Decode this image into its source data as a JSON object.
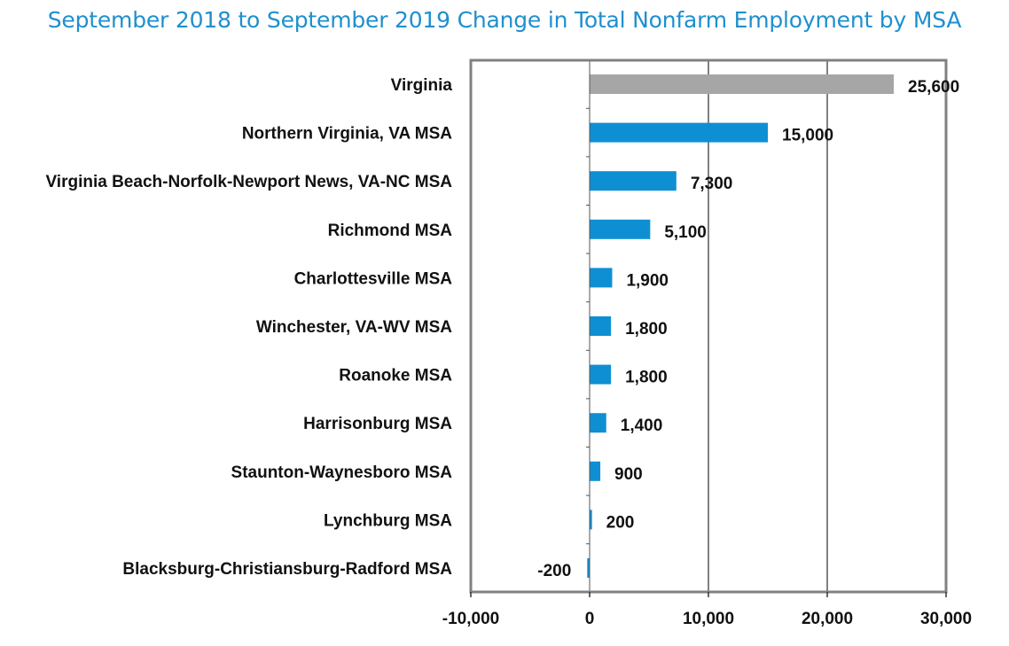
{
  "chart_data": {
    "type": "bar",
    "orientation": "horizontal",
    "title": "September 2018 to September 2019 Change in Total Nonfarm Employment by MSA",
    "xlabel": "",
    "ylabel": "",
    "categories": [
      "Virginia",
      "Northern Virginia, VA MSA",
      "Virginia Beach-Norfolk-Newport News, VA-NC MSA",
      "Richmond MSA",
      "Charlottesville MSA",
      "Winchester, VA-WV MSA",
      "Roanoke MSA",
      "Harrisonburg MSA",
      "Staunton-Waynesboro MSA",
      "Lynchburg MSA",
      "Blacksburg-Christiansburg-Radford MSA"
    ],
    "values": [
      25600,
      15000,
      7300,
      5100,
      1900,
      1800,
      1800,
      1400,
      900,
      200,
      -200
    ],
    "value_labels": [
      "25,600",
      "15,000",
      "7,300",
      "5,100",
      "1,900",
      "1,800",
      "1,800",
      "1,400",
      "900",
      "200",
      "-200"
    ],
    "xlim": [
      -10000,
      30000
    ],
    "xticks": [
      -10000,
      0,
      10000,
      20000,
      30000
    ],
    "xtick_labels": [
      "-10,000",
      "0",
      "10,000",
      "20,000",
      "30,000"
    ],
    "grid": "vertical",
    "legend": "none",
    "colors": {
      "highlight": "#a6a6a6",
      "bar": "#0f8fd3",
      "title": "#1f8fcf",
      "frame": "#808080",
      "gridline": "#000000"
    }
  }
}
